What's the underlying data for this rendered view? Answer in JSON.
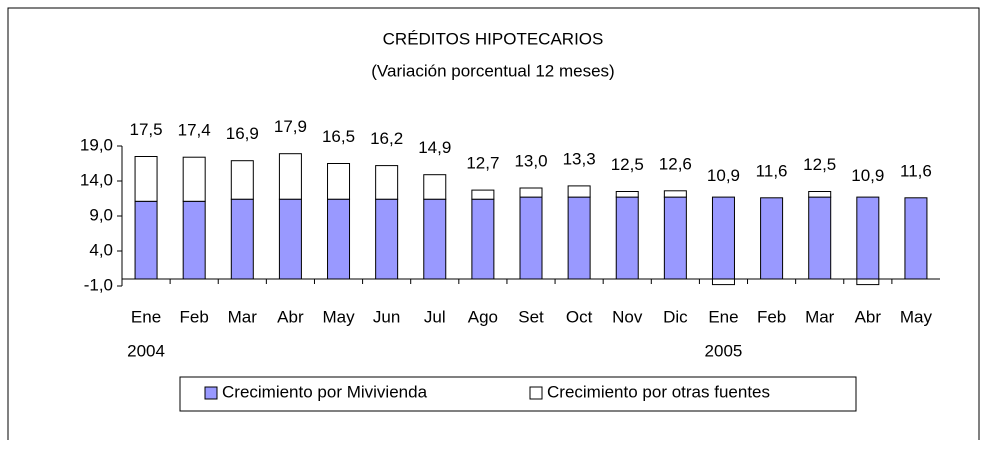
{
  "chart_data": {
    "type": "stacked-bar",
    "title": "CRÉDITOS HIPOTECARIOS",
    "subtitle": "(Variación porcentual 12 meses)",
    "categories": [
      "Ene",
      "Feb",
      "Mar",
      "Abr",
      "May",
      "Jun",
      "Jul",
      "Ago",
      "Set",
      "Oct",
      "Nov",
      "Dic",
      "Ene",
      "Feb",
      "Mar",
      "Abr",
      "May"
    ],
    "year_labels": [
      "2004",
      null,
      null,
      null,
      null,
      null,
      null,
      null,
      null,
      null,
      null,
      null,
      "2005",
      null,
      null,
      null,
      null
    ],
    "series": [
      {
        "name": "Crecimiento por Mivivienda",
        "color": "#9999ff",
        "values": [
          11.1,
          11.1,
          11.4,
          11.4,
          11.4,
          11.4,
          11.4,
          11.4,
          11.7,
          11.7,
          11.7,
          11.7,
          11.7,
          11.6,
          11.7,
          11.7,
          11.6
        ]
      },
      {
        "name": "Crecimiento por otras fuentes",
        "color": "#ffffff",
        "values": [
          6.4,
          6.3,
          5.5,
          6.5,
          5.1,
          4.8,
          3.5,
          1.3,
          1.3,
          1.6,
          0.8,
          0.9,
          -0.8,
          0,
          0.8,
          -0.8,
          0
        ]
      }
    ],
    "totals": [
      17.5,
      17.4,
      16.9,
      17.9,
      16.5,
      16.2,
      14.9,
      12.7,
      13.0,
      13.3,
      12.5,
      12.6,
      10.9,
      11.6,
      12.5,
      10.9,
      11.6
    ],
    "total_labels": [
      "17,5",
      "17,4",
      "16,9",
      "17,9",
      "16,5",
      "16,2",
      "14,9",
      "12,7",
      "13,0",
      "13,3",
      "12,5",
      "12,6",
      "10,9",
      "11,6",
      "12,5",
      "10,9",
      "11,6"
    ],
    "ylim": [
      -1,
      19
    ],
    "yticks": [
      {
        "value": -1,
        "label": "-1,0"
      },
      {
        "value": 4,
        "label": "4,0"
      },
      {
        "value": 9,
        "label": "9,0"
      },
      {
        "value": 14,
        "label": "14,0"
      },
      {
        "value": 19,
        "label": "19,0"
      }
    ],
    "grid": false,
    "legend": "bottom"
  }
}
